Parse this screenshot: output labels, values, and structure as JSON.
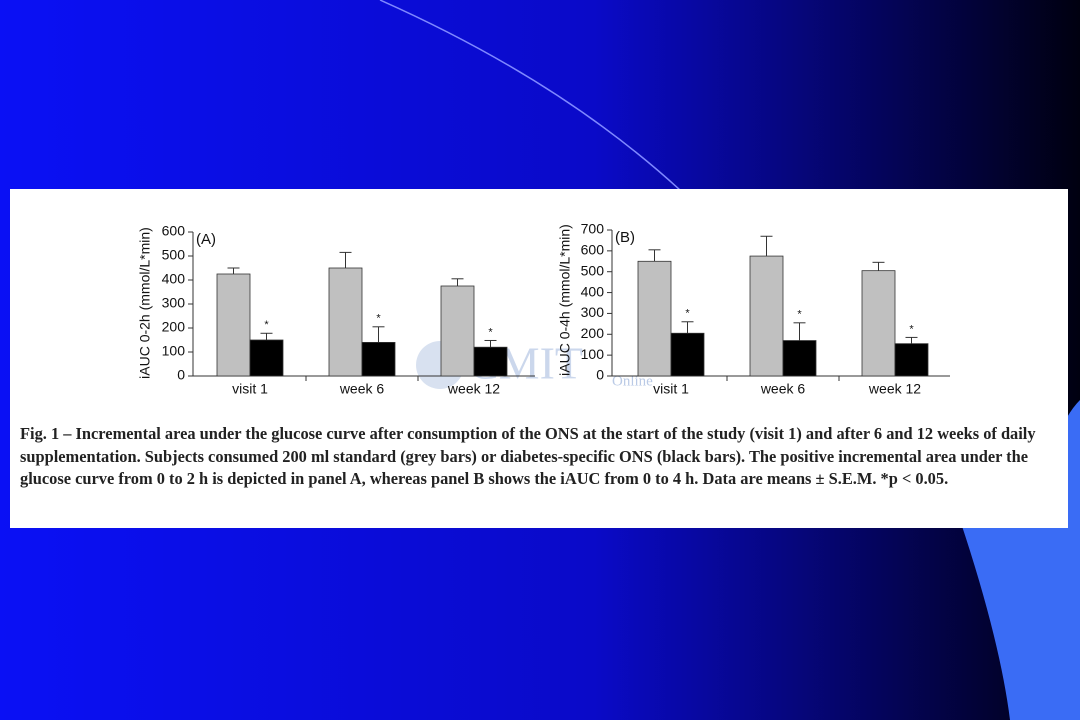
{
  "chart_data": [
    {
      "type": "bar",
      "panel_label": "(A)",
      "y_label": "iAUC 0-2h (mmol/L*min)",
      "categories": [
        "visit 1",
        "week 6",
        "week 12"
      ],
      "series": [
        {
          "color": "#c0c0c0",
          "values": [
            425,
            450,
            375
          ],
          "errors": [
            25,
            65,
            30
          ]
        },
        {
          "color": "#000000",
          "values": [
            150,
            140,
            120
          ],
          "errors": [
            28,
            65,
            28
          ],
          "annotations": [
            "*",
            "*",
            "*"
          ]
        }
      ],
      "ylim": [
        0,
        600
      ],
      "yticks": [
        0,
        100,
        200,
        300,
        400,
        500,
        600
      ]
    },
    {
      "type": "bar",
      "panel_label": "(B)",
      "y_label": "iAUC 0-4h (mmol/L*min)",
      "categories": [
        "visit 1",
        "week 6",
        "week 12"
      ],
      "series": [
        {
          "color": "#c0c0c0",
          "values": [
            550,
            575,
            505
          ],
          "errors": [
            55,
            95,
            40
          ]
        },
        {
          "color": "#000000",
          "values": [
            205,
            170,
            155
          ],
          "errors": [
            55,
            85,
            30
          ],
          "annotations": [
            "*",
            "*",
            "*"
          ]
        }
      ],
      "ylim": [
        0,
        700
      ],
      "yticks": [
        0,
        100,
        200,
        300,
        400,
        500,
        600,
        700
      ]
    }
  ],
  "watermark": {
    "main": "CMIT",
    "sub": "Online"
  },
  "caption": "Fig. 1 – Incremental area under the glucose curve after consumption of the ONS at the start of the study (visit 1) and after 6 and 12 weeks of daily supplementation. Subjects consumed 200 ml standard (grey bars) or diabetes-specific ONS (black bars). The positive incremental area under the glucose curve from 0 to 2 h is depicted in panel A, whereas panel B shows the iAUC from 0 to 4 h. Data are means ± S.E.M. *p < 0.05."
}
